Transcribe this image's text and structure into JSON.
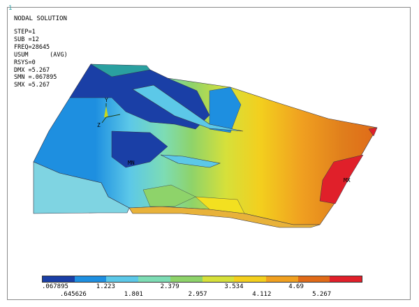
{
  "window": {
    "number": "1"
  },
  "header": {
    "title": "NODAL SOLUTION"
  },
  "params": [
    "STEP=1",
    "SUB =12",
    "FREQ=28645",
    "USUM      (AVG)",
    "RSYS=0",
    "DMX =5.267",
    "SMN =.067895",
    "SMX =5.267"
  ],
  "labels": {
    "mn": "MN",
    "mx": "MX",
    "axis_y": "Y",
    "axis_z": "Z"
  },
  "legend": {
    "colors": [
      "#1a3fa6",
      "#1e8fe0",
      "#5cc8e8",
      "#7ddcb4",
      "#8ed36a",
      "#d6e03a",
      "#f3cf1e",
      "#f0a020",
      "#e06a18",
      "#e0202a"
    ],
    "ticks_top": [
      ".067895",
      "1.223",
      "2.379",
      "3.534",
      "4.69"
    ],
    "ticks_bottom": [
      ".645626",
      "1.801",
      "2.957",
      "4.112",
      "5.267"
    ]
  }
}
